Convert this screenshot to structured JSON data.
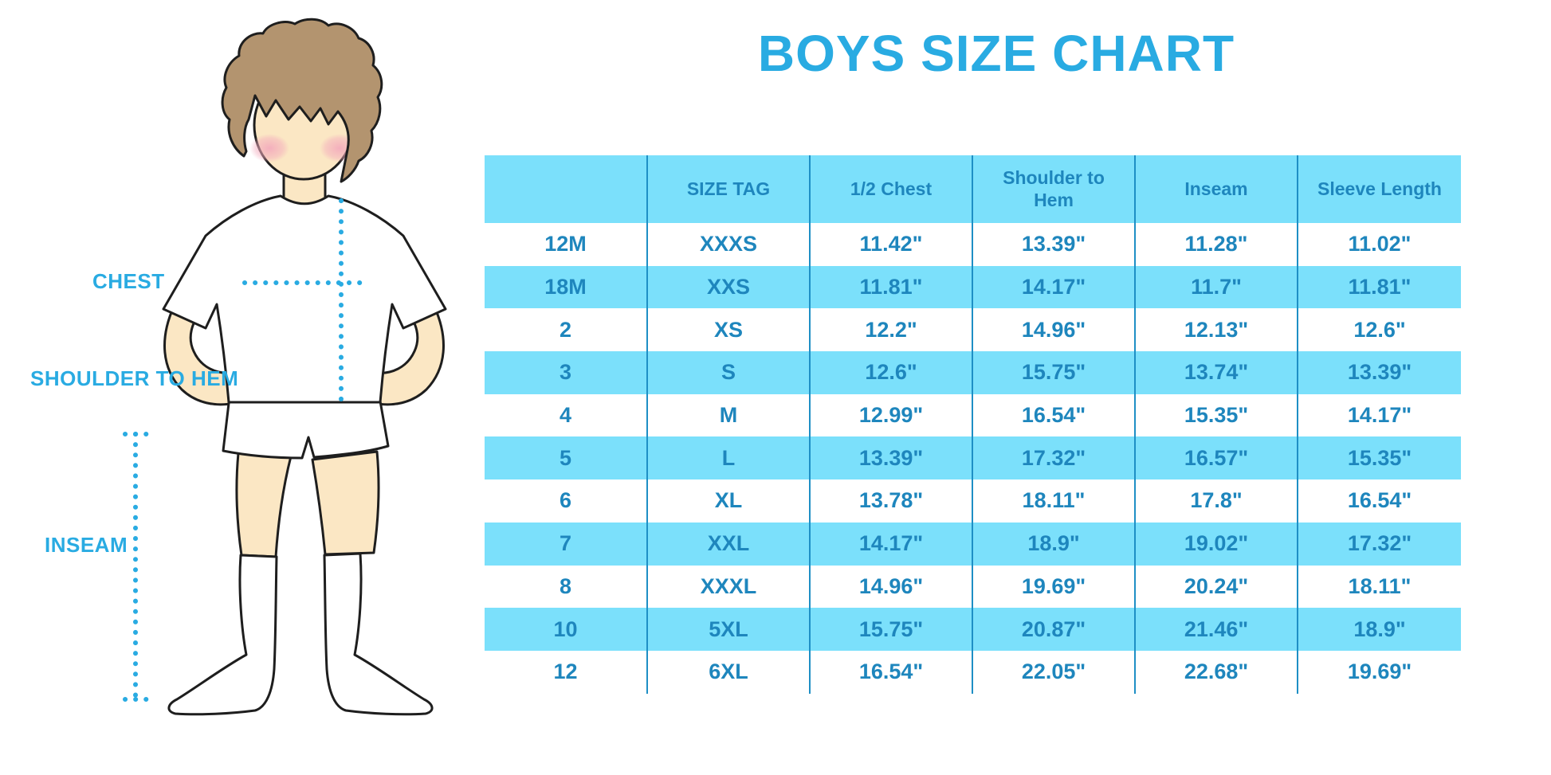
{
  "title": "BOYS SIZE CHART",
  "colors": {
    "accent_blue": "#29ABE2",
    "band_blue": "#7BE0FB",
    "table_text_blue": "#1E86BD",
    "separator_blue": "#1E8FC5",
    "skin": "#FBE7C4",
    "hair_brown": "#B3946F",
    "blush_pink": "#F3A9BC",
    "outline": "#1E1E1E"
  },
  "figure": {
    "labels": {
      "chest": "CHEST",
      "shoulder_to_hem": "SHOULDER TO HEM",
      "inseam": "INSEAM"
    },
    "illustration": "boy in white t-shirt, white shorts and knee socks with dotted measurement guides"
  },
  "table": {
    "columns": [
      "",
      "SIZE TAG",
      "1/2 Chest",
      "Shoulder to Hem",
      "Inseam",
      "Sleeve Length"
    ],
    "rows": [
      [
        "12M",
        "XXXS",
        "11.42\"",
        "13.39\"",
        "11.28\"",
        "11.02\""
      ],
      [
        "18M",
        "XXS",
        "11.81\"",
        "14.17\"",
        "11.7\"",
        "11.81\""
      ],
      [
        "2",
        "XS",
        "12.2\"",
        "14.96\"",
        "12.13\"",
        "12.6\""
      ],
      [
        "3",
        "S",
        "12.6\"",
        "15.75\"",
        "13.74\"",
        "13.39\""
      ],
      [
        "4",
        "M",
        "12.99\"",
        "16.54\"",
        "15.35\"",
        "14.17\""
      ],
      [
        "5",
        "L",
        "13.39\"",
        "17.32\"",
        "16.57\"",
        "15.35\""
      ],
      [
        "6",
        "XL",
        "13.78\"",
        "18.11\"",
        "17.8\"",
        "16.54\""
      ],
      [
        "7",
        "XXL",
        "14.17\"",
        "18.9\"",
        "19.02\"",
        "17.32\""
      ],
      [
        "8",
        "XXXL",
        "14.96\"",
        "19.69\"",
        "20.24\"",
        "18.11\""
      ],
      [
        "10",
        "5XL",
        "15.75\"",
        "20.87\"",
        "21.46\"",
        "18.9\""
      ],
      [
        "12",
        "6XL",
        "16.54\"",
        "22.05\"",
        "22.68\"",
        "19.69\""
      ]
    ]
  }
}
